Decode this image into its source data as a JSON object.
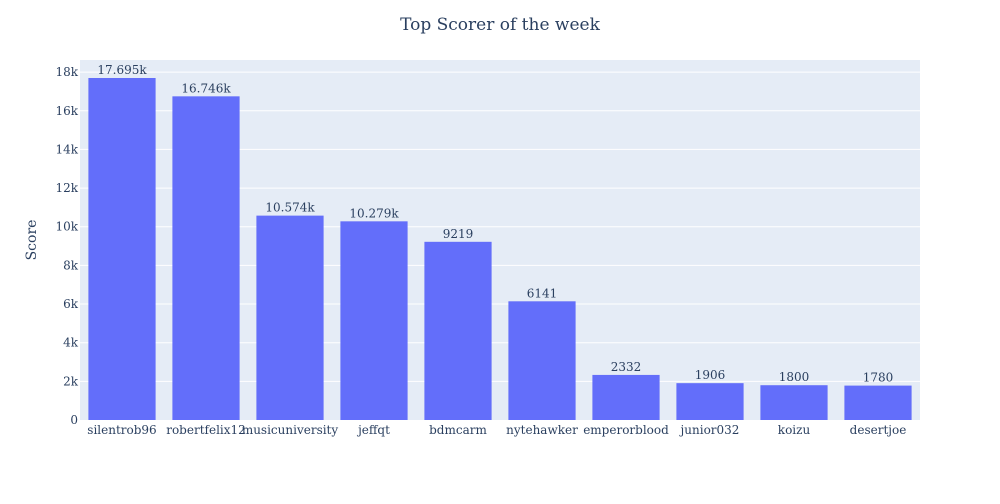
{
  "chart_data": {
    "type": "bar",
    "title": "Top Scorer of the week",
    "xlabel": "",
    "ylabel": "Score",
    "categories": [
      "silentrob96",
      "robertfelix12",
      "musicuniversity",
      "jeffqt",
      "bdmcarm",
      "nytehawker",
      "emperorblood",
      "junior032",
      "koizu",
      "desertjoe"
    ],
    "values": [
      17695,
      16746,
      10574,
      10279,
      9219,
      6141,
      2332,
      1906,
      1800,
      1780
    ],
    "data_labels": [
      "17.695k",
      "16.746k",
      "10.574k",
      "10.279k",
      "9219",
      "6141",
      "2332",
      "1906",
      "1800",
      "1780"
    ],
    "ylim": [
      0,
      18626
    ],
    "yticks": [
      0,
      2000,
      4000,
      6000,
      8000,
      10000,
      12000,
      14000,
      16000,
      18000
    ],
    "ytick_labels": [
      "0",
      "2k",
      "4k",
      "6k",
      "8k",
      "10k",
      "12k",
      "14k",
      "16k",
      "18k"
    ],
    "grid": true,
    "colors": {
      "bar": "#636efa",
      "plot_bg": "#e5ecf6",
      "grid": "#ffffff",
      "text": "#2a3f5f"
    }
  }
}
